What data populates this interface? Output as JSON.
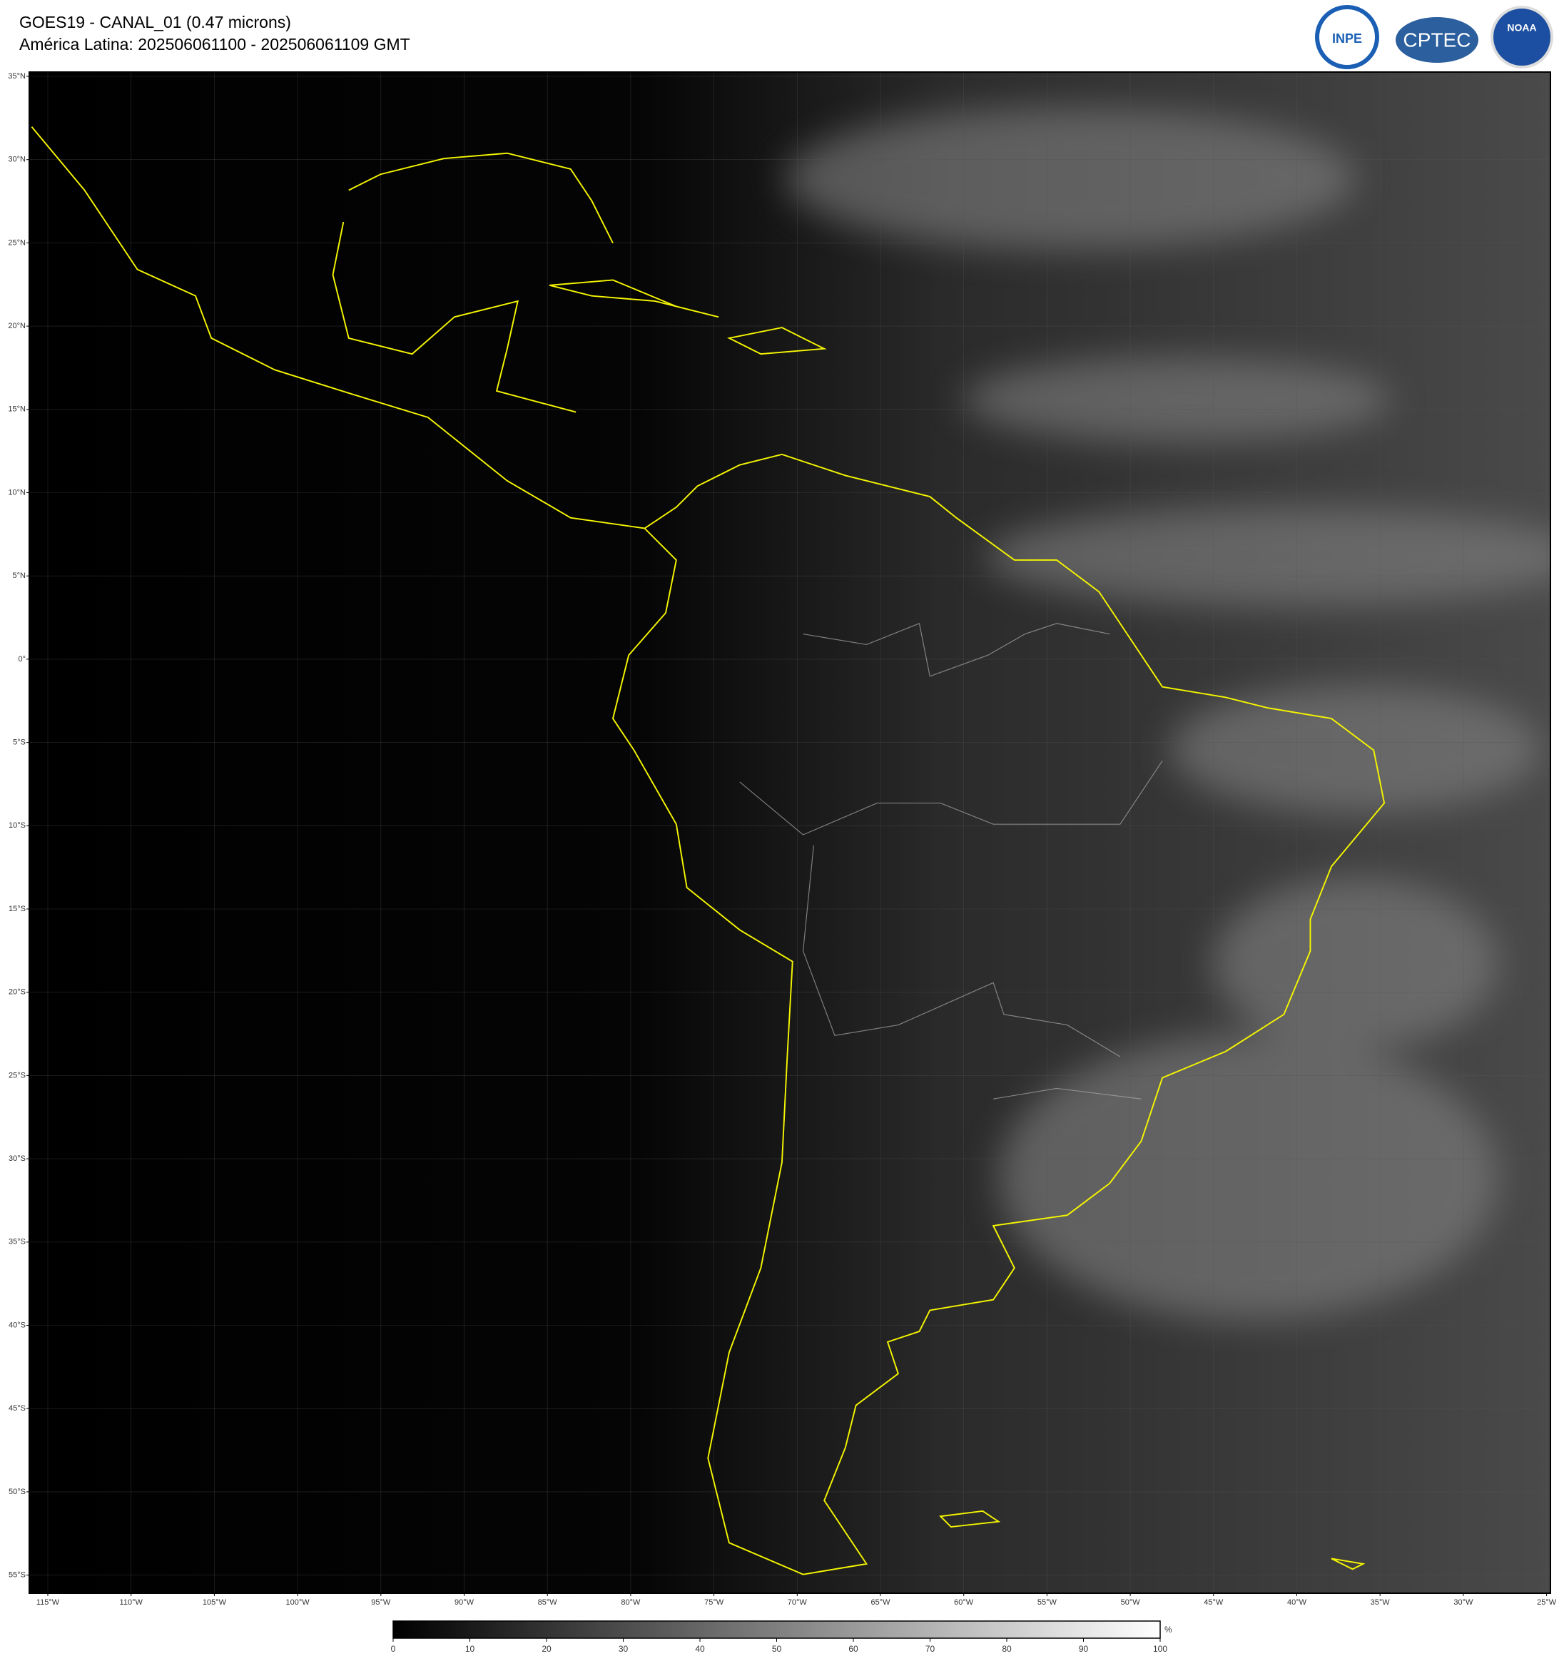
{
  "header": {
    "title": "GOES19 - CANAL_01 (0.47 microns)",
    "subtitle": "América Latina: 202506061100 - 202506061109 GMT"
  },
  "logos": [
    "INPE",
    "CPTEC",
    "NOAA"
  ],
  "map": {
    "lat_labels": [
      "35°N",
      "30°N",
      "25°N",
      "20°N",
      "15°N",
      "10°N",
      "5°N",
      "0°",
      "5°S",
      "10°S",
      "15°S",
      "20°S",
      "25°S",
      "30°S",
      "35°S",
      "40°S",
      "45°S",
      "50°S",
      "55°S"
    ],
    "lon_labels": [
      "115°W",
      "110°W",
      "105°W",
      "100°W",
      "95°W",
      "90°W",
      "85°W",
      "80°W",
      "75°W",
      "70°W",
      "65°W",
      "60°W",
      "55°W",
      "50°W",
      "45°W",
      "40°W",
      "35°W",
      "30°W",
      "25°W"
    ]
  },
  "colorbar": {
    "ticks": [
      0,
      10,
      20,
      30,
      40,
      50,
      60,
      70,
      80,
      90,
      100
    ],
    "range": [
      0,
      100
    ],
    "unit": "%"
  }
}
